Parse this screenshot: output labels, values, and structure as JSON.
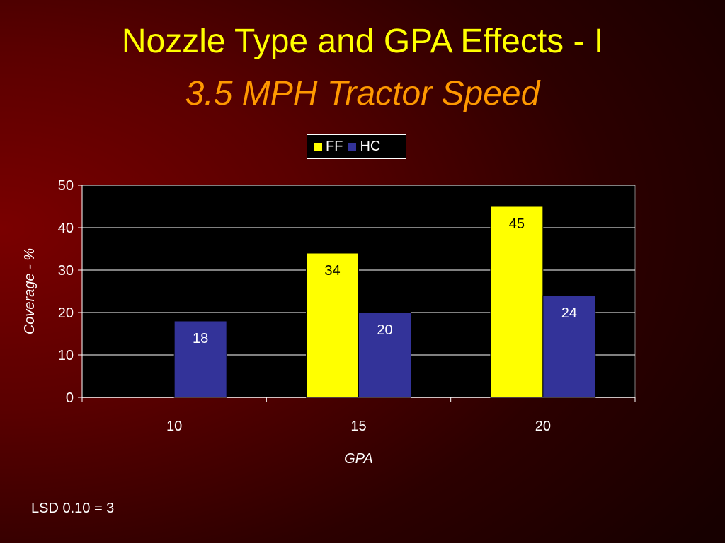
{
  "slide": {
    "title": "Nozzle Type and GPA Effects - I",
    "subtitle": "3.5 MPH Tractor Speed",
    "footnote": "LSD 0.10 = 3"
  },
  "colors": {
    "title": "#ffff00",
    "subtitle": "#ff9900",
    "FF": "#ffff00",
    "HC": "#333399",
    "plot_background": "#000000",
    "axis_text": "#ffffff"
  },
  "chart_data": {
    "type": "bar",
    "xlabel": "GPA",
    "ylabel": "Coverage - %",
    "categories": [
      "10",
      "15",
      "20"
    ],
    "series": [
      {
        "name": "FF",
        "values": [
          null,
          34,
          45
        ]
      },
      {
        "name": "HC",
        "values": [
          18,
          20,
          24
        ]
      }
    ],
    "ylim": [
      0,
      50
    ],
    "yticks": [
      "0",
      "10",
      "20",
      "30",
      "40",
      "50"
    ],
    "grid": true,
    "legend": "top-center",
    "data_labels": true
  }
}
